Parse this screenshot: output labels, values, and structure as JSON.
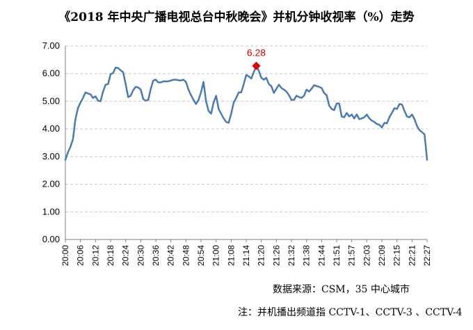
{
  "title": "《2018 年中央广播电视总台中秋晚会》并机分钟收视率（%）走势",
  "source": "数据来源：CSM，35 中心城市",
  "note": "注：并机播出频道指 CCTV-1、CCTV-3 、CCTV-4",
  "colors": {
    "line": "#4a7ab5",
    "peak_marker": "#e00000",
    "grid": "#c8c8c8"
  },
  "chart_data": {
    "type": "line",
    "title": "《2018 年中央广播电视总台中秋晚会》并机分钟收视率（%）走势",
    "xlabel": "",
    "ylabel": "",
    "ylim": [
      0,
      7
    ],
    "y_ticks": [
      "0.00",
      "1.00",
      "2.00",
      "3.00",
      "4.00",
      "5.00",
      "6.00",
      "7.00"
    ],
    "grid": true,
    "legend": "none",
    "x_tick_labels": [
      "20:00",
      "20:06",
      "20:12",
      "20:18",
      "20:24",
      "20:30",
      "20:36",
      "20:42",
      "20:48",
      "20:54",
      "21:00",
      "21:08",
      "21:14",
      "21:20",
      "21:26",
      "21:32",
      "21:38",
      "21:44",
      "21:51",
      "21:57",
      "22:03",
      "22:09",
      "22:15",
      "22:21",
      "22:27"
    ],
    "series": [
      {
        "values": [
          2.88,
          3.15,
          3.35,
          3.62,
          4.35,
          4.75,
          4.95,
          5.12,
          5.32,
          5.28,
          5.25,
          5.12,
          5.18,
          5.02,
          5.0,
          5.35,
          5.6,
          5.62,
          5.98,
          6.02,
          6.22,
          6.2,
          6.12,
          6.05,
          5.62,
          5.15,
          5.2,
          5.4,
          5.52,
          5.5,
          5.42,
          5.08,
          5.02,
          5.05,
          5.45,
          5.75,
          5.78,
          5.68,
          5.68,
          5.72,
          5.72,
          5.72,
          5.75,
          5.78,
          5.78,
          5.76,
          5.75,
          5.78,
          5.7,
          5.42,
          5.22,
          5.05,
          4.9,
          5.05,
          5.32,
          5.7,
          5.0,
          4.65,
          4.55,
          4.95,
          5.2,
          4.72,
          4.55,
          4.38,
          4.25,
          4.22,
          4.55,
          4.95,
          5.12,
          5.32,
          5.32,
          5.62,
          5.95,
          5.9,
          5.82,
          6.05,
          6.28,
          6.1,
          5.85,
          5.78,
          5.85,
          5.62,
          5.55,
          5.3,
          5.45,
          5.6,
          5.48,
          5.42,
          5.35,
          5.22,
          5.05,
          5.05,
          5.2,
          5.15,
          5.12,
          5.2,
          5.42,
          5.35,
          5.45,
          5.58,
          5.55,
          5.52,
          5.48,
          5.3,
          5.22,
          4.85,
          4.72,
          4.68,
          4.92,
          4.92,
          4.45,
          4.42,
          4.58,
          4.45,
          4.52,
          4.38,
          4.52,
          4.35,
          4.38,
          4.42,
          4.52,
          4.38,
          4.3,
          4.25,
          4.18,
          4.15,
          4.05,
          4.22,
          4.2,
          4.42,
          4.58,
          4.75,
          4.72,
          4.9,
          4.88,
          4.65,
          4.45,
          4.42,
          4.52,
          4.35,
          4.1,
          3.95,
          3.88,
          3.8,
          2.88
        ]
      }
    ],
    "annotations": [
      {
        "label": "6.28",
        "index": 76,
        "value": 6.28
      }
    ]
  }
}
